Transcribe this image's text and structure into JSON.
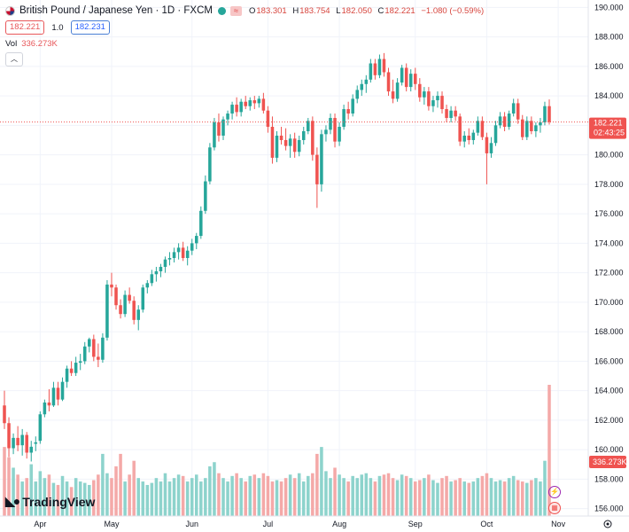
{
  "header": {
    "symbol_title": "British Pound / Japanese Yen · 1D · FXCM",
    "open_label": "O",
    "open": "183.301",
    "high_label": "H",
    "high": "183.754",
    "low_label": "L",
    "low": "182.050",
    "close_label": "C",
    "close": "182.221",
    "change": "−1.080 (−0.59%)",
    "bid": "182.221",
    "multiplier": "1.0",
    "ask": "182.231",
    "vol_label": "Vol",
    "vol_value": "336.273K",
    "collapse_icon": "chevron-up-icon"
  },
  "price_marker": {
    "price": "182.221",
    "countdown": "02:43:25"
  },
  "volume_marker": "336.273K",
  "logo": "TradingView",
  "colors": {
    "up": "#26a69a",
    "down": "#ef5350",
    "vol_up": "#8dd3cc",
    "vol_down": "#f4a9a8",
    "grid": "#f0f3fa",
    "axis_text": "#131722"
  },
  "chart_data": {
    "type": "candlestick",
    "title": "British Pound / Japanese Yen · 1D · FXCM",
    "ylim": [
      155.5,
      190.5
    ],
    "yticks": [
      "156.000",
      "158.000",
      "160.000",
      "162.000",
      "164.000",
      "166.000",
      "168.000",
      "170.000",
      "172.000",
      "174.000",
      "176.000",
      "178.000",
      "180.000",
      "182.000",
      "184.000",
      "186.000",
      "188.000",
      "190.000"
    ],
    "xticks": [
      {
        "label": "Apr",
        "index": 8
      },
      {
        "label": "May",
        "index": 24
      },
      {
        "label": "Jun",
        "index": 42
      },
      {
        "label": "Jul",
        "index": 59
      },
      {
        "label": "Aug",
        "index": 75
      },
      {
        "label": "Sep",
        "index": 92
      },
      {
        "label": "Oct",
        "index": 108
      },
      {
        "label": "Nov",
        "index": 124
      }
    ],
    "grid": true,
    "candles": [
      {
        "o": 163.0,
        "h": 164.0,
        "l": 161.4,
        "c": 161.8,
        "v": 1.0
      },
      {
        "o": 161.8,
        "h": 162.2,
        "l": 159.5,
        "c": 160.1,
        "v": 0.85
      },
      {
        "o": 160.1,
        "h": 161.1,
        "l": 159.7,
        "c": 160.8,
        "v": 0.7
      },
      {
        "o": 160.8,
        "h": 161.6,
        "l": 159.9,
        "c": 160.3,
        "v": 0.6
      },
      {
        "o": 160.3,
        "h": 161.4,
        "l": 159.6,
        "c": 161.0,
        "v": 0.5
      },
      {
        "o": 161.0,
        "h": 161.2,
        "l": 159.4,
        "c": 159.8,
        "v": 0.55
      },
      {
        "o": 159.8,
        "h": 160.6,
        "l": 159.2,
        "c": 160.2,
        "v": 0.75
      },
      {
        "o": 160.4,
        "h": 160.9,
        "l": 159.9,
        "c": 160.5,
        "v": 0.5
      },
      {
        "o": 160.6,
        "h": 162.6,
        "l": 160.4,
        "c": 162.4,
        "v": 0.65
      },
      {
        "o": 162.4,
        "h": 163.4,
        "l": 162.2,
        "c": 163.2,
        "v": 0.55
      },
      {
        "o": 163.2,
        "h": 164.1,
        "l": 162.6,
        "c": 163.0,
        "v": 0.6
      },
      {
        "o": 163.0,
        "h": 164.6,
        "l": 162.9,
        "c": 164.2,
        "v": 0.48
      },
      {
        "o": 164.2,
        "h": 164.6,
        "l": 163.0,
        "c": 163.4,
        "v": 0.45
      },
      {
        "o": 163.4,
        "h": 164.9,
        "l": 163.3,
        "c": 164.6,
        "v": 0.58
      },
      {
        "o": 164.6,
        "h": 165.7,
        "l": 164.2,
        "c": 165.5,
        "v": 0.5
      },
      {
        "o": 165.5,
        "h": 166.0,
        "l": 165.0,
        "c": 165.2,
        "v": 0.42
      },
      {
        "o": 165.2,
        "h": 166.3,
        "l": 165.0,
        "c": 165.9,
        "v": 0.55
      },
      {
        "o": 165.9,
        "h": 166.5,
        "l": 165.4,
        "c": 166.0,
        "v": 0.5
      },
      {
        "o": 166.0,
        "h": 167.3,
        "l": 165.8,
        "c": 167.0,
        "v": 0.48
      },
      {
        "o": 167.0,
        "h": 167.6,
        "l": 166.6,
        "c": 167.5,
        "v": 0.45
      },
      {
        "o": 167.5,
        "h": 167.8,
        "l": 166.0,
        "c": 166.3,
        "v": 0.52
      },
      {
        "o": 166.3,
        "h": 167.2,
        "l": 165.6,
        "c": 166.1,
        "v": 0.6
      },
      {
        "o": 166.1,
        "h": 167.9,
        "l": 165.9,
        "c": 167.6,
        "v": 0.9
      },
      {
        "o": 167.6,
        "h": 171.5,
        "l": 167.4,
        "c": 171.2,
        "v": 0.62
      },
      {
        "o": 171.2,
        "h": 172.0,
        "l": 170.4,
        "c": 171.0,
        "v": 0.55
      },
      {
        "o": 171.0,
        "h": 171.2,
        "l": 169.5,
        "c": 169.8,
        "v": 0.72
      },
      {
        "o": 169.8,
        "h": 170.2,
        "l": 168.9,
        "c": 169.2,
        "v": 0.9
      },
      {
        "o": 169.2,
        "h": 170.8,
        "l": 169.0,
        "c": 170.5,
        "v": 0.5
      },
      {
        "o": 170.5,
        "h": 171.0,
        "l": 169.9,
        "c": 170.1,
        "v": 0.6
      },
      {
        "o": 170.1,
        "h": 170.4,
        "l": 168.5,
        "c": 168.8,
        "v": 0.8
      },
      {
        "o": 168.8,
        "h": 169.8,
        "l": 168.1,
        "c": 169.5,
        "v": 0.55
      },
      {
        "o": 169.5,
        "h": 171.2,
        "l": 169.3,
        "c": 171.0,
        "v": 0.5
      },
      {
        "o": 171.0,
        "h": 171.5,
        "l": 170.6,
        "c": 171.3,
        "v": 0.45
      },
      {
        "o": 171.3,
        "h": 172.2,
        "l": 171.1,
        "c": 171.9,
        "v": 0.48
      },
      {
        "o": 171.9,
        "h": 172.4,
        "l": 171.4,
        "c": 172.1,
        "v": 0.55
      },
      {
        "o": 172.1,
        "h": 172.6,
        "l": 171.7,
        "c": 172.4,
        "v": 0.5
      },
      {
        "o": 172.4,
        "h": 173.1,
        "l": 172.0,
        "c": 172.9,
        "v": 0.62
      },
      {
        "o": 172.9,
        "h": 173.4,
        "l": 172.5,
        "c": 173.0,
        "v": 0.5
      },
      {
        "o": 173.0,
        "h": 173.7,
        "l": 172.7,
        "c": 173.4,
        "v": 0.55
      },
      {
        "o": 173.4,
        "h": 174.0,
        "l": 172.9,
        "c": 173.7,
        "v": 0.6
      },
      {
        "o": 173.7,
        "h": 174.1,
        "l": 172.8,
        "c": 173.0,
        "v": 0.58
      },
      {
        "o": 173.0,
        "h": 173.8,
        "l": 172.5,
        "c": 173.5,
        "v": 0.5
      },
      {
        "o": 173.5,
        "h": 174.3,
        "l": 173.2,
        "c": 174.0,
        "v": 0.55
      },
      {
        "o": 174.0,
        "h": 174.7,
        "l": 173.6,
        "c": 174.5,
        "v": 0.6
      },
      {
        "o": 174.5,
        "h": 176.5,
        "l": 174.3,
        "c": 176.2,
        "v": 0.5
      },
      {
        "o": 176.2,
        "h": 178.6,
        "l": 176.0,
        "c": 178.2,
        "v": 0.55
      },
      {
        "o": 178.2,
        "h": 180.8,
        "l": 178.0,
        "c": 180.5,
        "v": 0.72
      },
      {
        "o": 180.5,
        "h": 182.5,
        "l": 180.3,
        "c": 182.2,
        "v": 0.78
      },
      {
        "o": 182.2,
        "h": 182.8,
        "l": 180.9,
        "c": 181.3,
        "v": 0.62
      },
      {
        "o": 181.3,
        "h": 182.6,
        "l": 181.0,
        "c": 182.4,
        "v": 0.55
      },
      {
        "o": 182.4,
        "h": 183.0,
        "l": 182.0,
        "c": 182.8,
        "v": 0.5
      },
      {
        "o": 182.8,
        "h": 183.6,
        "l": 182.4,
        "c": 183.4,
        "v": 0.58
      },
      {
        "o": 183.4,
        "h": 183.9,
        "l": 182.6,
        "c": 182.9,
        "v": 0.62
      },
      {
        "o": 182.9,
        "h": 183.8,
        "l": 182.6,
        "c": 183.6,
        "v": 0.55
      },
      {
        "o": 183.6,
        "h": 184.0,
        "l": 183.1,
        "c": 183.3,
        "v": 0.5
      },
      {
        "o": 183.3,
        "h": 183.9,
        "l": 183.0,
        "c": 183.7,
        "v": 0.58
      },
      {
        "o": 183.7,
        "h": 184.0,
        "l": 183.1,
        "c": 183.5,
        "v": 0.6
      },
      {
        "o": 183.5,
        "h": 184.0,
        "l": 183.2,
        "c": 183.8,
        "v": 0.55
      },
      {
        "o": 183.8,
        "h": 184.2,
        "l": 182.8,
        "c": 183.0,
        "v": 0.62
      },
      {
        "o": 183.0,
        "h": 183.3,
        "l": 181.5,
        "c": 181.9,
        "v": 0.58
      },
      {
        "o": 181.9,
        "h": 182.6,
        "l": 179.4,
        "c": 179.8,
        "v": 0.5
      },
      {
        "o": 179.8,
        "h": 181.6,
        "l": 179.5,
        "c": 181.3,
        "v": 0.52
      },
      {
        "o": 181.3,
        "h": 181.9,
        "l": 180.7,
        "c": 181.0,
        "v": 0.5
      },
      {
        "o": 181.0,
        "h": 181.8,
        "l": 180.3,
        "c": 180.6,
        "v": 0.55
      },
      {
        "o": 180.6,
        "h": 181.4,
        "l": 179.8,
        "c": 181.1,
        "v": 0.6
      },
      {
        "o": 181.1,
        "h": 181.5,
        "l": 179.8,
        "c": 180.2,
        "v": 0.55
      },
      {
        "o": 180.2,
        "h": 181.3,
        "l": 179.9,
        "c": 181.0,
        "v": 0.62
      },
      {
        "o": 181.0,
        "h": 181.9,
        "l": 180.7,
        "c": 181.6,
        "v": 0.5
      },
      {
        "o": 181.6,
        "h": 182.5,
        "l": 181.4,
        "c": 182.3,
        "v": 0.58
      },
      {
        "o": 182.3,
        "h": 182.6,
        "l": 179.6,
        "c": 180.0,
        "v": 0.62
      },
      {
        "o": 180.0,
        "h": 180.5,
        "l": 176.4,
        "c": 178.0,
        "v": 0.9
      },
      {
        "o": 178.0,
        "h": 181.7,
        "l": 177.5,
        "c": 181.4,
        "v": 1.0
      },
      {
        "o": 181.4,
        "h": 182.0,
        "l": 180.9,
        "c": 181.7,
        "v": 0.65
      },
      {
        "o": 181.7,
        "h": 182.8,
        "l": 181.4,
        "c": 182.5,
        "v": 0.55
      },
      {
        "o": 182.5,
        "h": 182.8,
        "l": 180.5,
        "c": 180.9,
        "v": 0.7
      },
      {
        "o": 180.9,
        "h": 182.2,
        "l": 180.6,
        "c": 181.9,
        "v": 0.6
      },
      {
        "o": 181.9,
        "h": 183.4,
        "l": 181.7,
        "c": 183.1,
        "v": 0.55
      },
      {
        "o": 183.1,
        "h": 183.6,
        "l": 182.4,
        "c": 182.8,
        "v": 0.5
      },
      {
        "o": 182.8,
        "h": 184.1,
        "l": 182.6,
        "c": 183.8,
        "v": 0.58
      },
      {
        "o": 183.8,
        "h": 184.7,
        "l": 183.5,
        "c": 184.4,
        "v": 0.55
      },
      {
        "o": 184.4,
        "h": 185.1,
        "l": 184.0,
        "c": 184.8,
        "v": 0.6
      },
      {
        "o": 184.8,
        "h": 185.4,
        "l": 184.2,
        "c": 185.1,
        "v": 0.62
      },
      {
        "o": 185.1,
        "h": 186.5,
        "l": 184.9,
        "c": 186.2,
        "v": 0.55
      },
      {
        "o": 186.2,
        "h": 186.5,
        "l": 185.1,
        "c": 185.4,
        "v": 0.5
      },
      {
        "o": 185.4,
        "h": 186.8,
        "l": 185.2,
        "c": 186.5,
        "v": 0.58
      },
      {
        "o": 186.5,
        "h": 186.9,
        "l": 185.3,
        "c": 185.6,
        "v": 0.6
      },
      {
        "o": 185.6,
        "h": 185.9,
        "l": 184.0,
        "c": 184.3,
        "v": 0.62
      },
      {
        "o": 184.3,
        "h": 185.1,
        "l": 183.5,
        "c": 183.8,
        "v": 0.55
      },
      {
        "o": 183.8,
        "h": 185.2,
        "l": 183.6,
        "c": 184.9,
        "v": 0.52
      },
      {
        "o": 184.9,
        "h": 186.1,
        "l": 184.7,
        "c": 185.9,
        "v": 0.6
      },
      {
        "o": 185.9,
        "h": 186.2,
        "l": 184.3,
        "c": 184.6,
        "v": 0.58
      },
      {
        "o": 184.6,
        "h": 185.8,
        "l": 184.3,
        "c": 185.5,
        "v": 0.55
      },
      {
        "o": 185.5,
        "h": 185.9,
        "l": 184.4,
        "c": 184.8,
        "v": 0.5
      },
      {
        "o": 184.8,
        "h": 185.2,
        "l": 183.6,
        "c": 183.9,
        "v": 0.52
      },
      {
        "o": 183.9,
        "h": 184.6,
        "l": 183.4,
        "c": 184.3,
        "v": 0.55
      },
      {
        "o": 184.3,
        "h": 184.6,
        "l": 183.0,
        "c": 183.3,
        "v": 0.6
      },
      {
        "o": 183.3,
        "h": 184.0,
        "l": 182.9,
        "c": 183.7,
        "v": 0.52
      },
      {
        "o": 183.7,
        "h": 184.3,
        "l": 183.2,
        "c": 184.0,
        "v": 0.48
      },
      {
        "o": 184.0,
        "h": 184.3,
        "l": 182.8,
        "c": 183.1,
        "v": 0.55
      },
      {
        "o": 183.1,
        "h": 183.4,
        "l": 182.2,
        "c": 182.5,
        "v": 0.58
      },
      {
        "o": 182.5,
        "h": 183.3,
        "l": 182.2,
        "c": 183.0,
        "v": 0.5
      },
      {
        "o": 183.0,
        "h": 183.3,
        "l": 182.3,
        "c": 182.6,
        "v": 0.52
      },
      {
        "o": 182.6,
        "h": 182.8,
        "l": 180.6,
        "c": 180.9,
        "v": 0.55
      },
      {
        "o": 180.9,
        "h": 181.6,
        "l": 180.5,
        "c": 181.3,
        "v": 0.5
      },
      {
        "o": 181.3,
        "h": 181.8,
        "l": 180.7,
        "c": 181.0,
        "v": 0.48
      },
      {
        "o": 181.0,
        "h": 181.7,
        "l": 180.7,
        "c": 181.5,
        "v": 0.5
      },
      {
        "o": 181.5,
        "h": 182.6,
        "l": 181.3,
        "c": 182.3,
        "v": 0.55
      },
      {
        "o": 182.3,
        "h": 182.6,
        "l": 181.0,
        "c": 181.2,
        "v": 0.58
      },
      {
        "o": 181.2,
        "h": 181.5,
        "l": 178.0,
        "c": 180.1,
        "v": 0.62
      },
      {
        "o": 180.1,
        "h": 181.2,
        "l": 179.8,
        "c": 180.8,
        "v": 0.55
      },
      {
        "o": 180.8,
        "h": 182.3,
        "l": 180.6,
        "c": 182.0,
        "v": 0.5
      },
      {
        "o": 182.0,
        "h": 182.9,
        "l": 181.8,
        "c": 182.6,
        "v": 0.52
      },
      {
        "o": 182.6,
        "h": 182.9,
        "l": 181.6,
        "c": 181.9,
        "v": 0.5
      },
      {
        "o": 181.9,
        "h": 183.0,
        "l": 181.7,
        "c": 182.8,
        "v": 0.55
      },
      {
        "o": 182.8,
        "h": 183.8,
        "l": 182.6,
        "c": 183.5,
        "v": 0.58
      },
      {
        "o": 183.5,
        "h": 183.8,
        "l": 182.1,
        "c": 182.4,
        "v": 0.52
      },
      {
        "o": 182.4,
        "h": 182.7,
        "l": 181.0,
        "c": 181.2,
        "v": 0.5
      },
      {
        "o": 181.2,
        "h": 182.6,
        "l": 181.0,
        "c": 182.3,
        "v": 0.48
      },
      {
        "o": 182.3,
        "h": 182.6,
        "l": 181.4,
        "c": 181.6,
        "v": 0.52
      },
      {
        "o": 181.6,
        "h": 182.2,
        "l": 181.2,
        "c": 182.0,
        "v": 0.55
      },
      {
        "o": 182.0,
        "h": 182.5,
        "l": 181.5,
        "c": 182.2,
        "v": 0.5
      },
      {
        "o": 182.2,
        "h": 183.6,
        "l": 182.0,
        "c": 183.3,
        "v": 0.8
      },
      {
        "o": 183.3,
        "h": 183.754,
        "l": 182.05,
        "c": 182.221,
        "v": 1.9
      }
    ]
  }
}
